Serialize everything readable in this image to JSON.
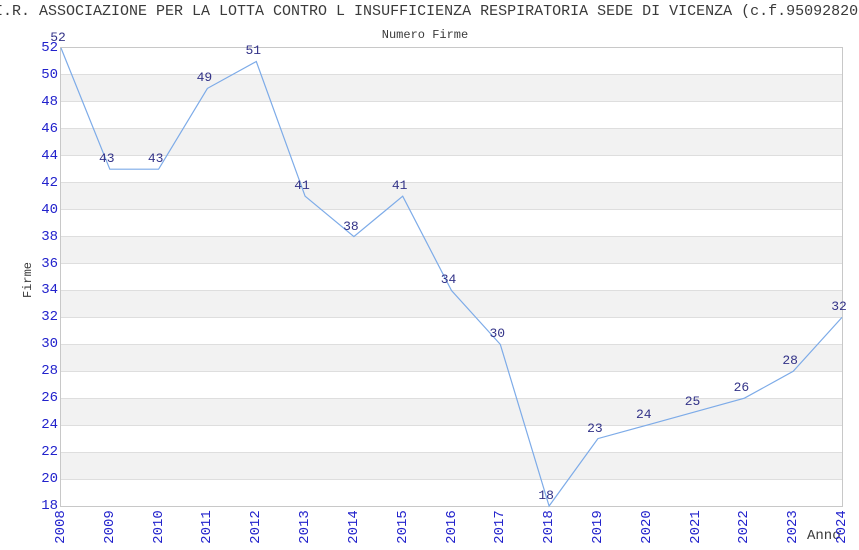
{
  "header": {
    "title": "I.R. ASSOCIAZIONE PER LA LOTTA CONTRO L INSUFFICIENZA RESPIRATORIA SEDE DI VICENZA (c.f.95092820",
    "subtitle": "Numero Firme"
  },
  "colors": {
    "line": "#7dabe8",
    "tick_label": "#2222cc",
    "data_label": "#333388",
    "gridline": "#dedede",
    "band_gray": "#f2f2f2",
    "plot_border": "#c8c8c8",
    "text": "#3a3a3a",
    "background": "#ffffff"
  },
  "chart_data": {
    "type": "line",
    "title": "Numero Firme",
    "xlabel": "Anno",
    "ylabel": "Firme",
    "x": [
      2008,
      2009,
      2010,
      2011,
      2012,
      2013,
      2014,
      2015,
      2016,
      2017,
      2018,
      2019,
      2020,
      2021,
      2022,
      2023,
      2024
    ],
    "values": [
      52,
      43,
      43,
      49,
      51,
      41,
      38,
      41,
      34,
      30,
      18,
      23,
      24,
      25,
      26,
      28,
      32
    ],
    "ylim": [
      18,
      52
    ],
    "ytick_step": 2,
    "grid": true,
    "bands": "alternating horizontal white/gray, 2 units each",
    "legend_position": "none",
    "data_labels_shown": true,
    "x_tick_rotation": -90
  }
}
